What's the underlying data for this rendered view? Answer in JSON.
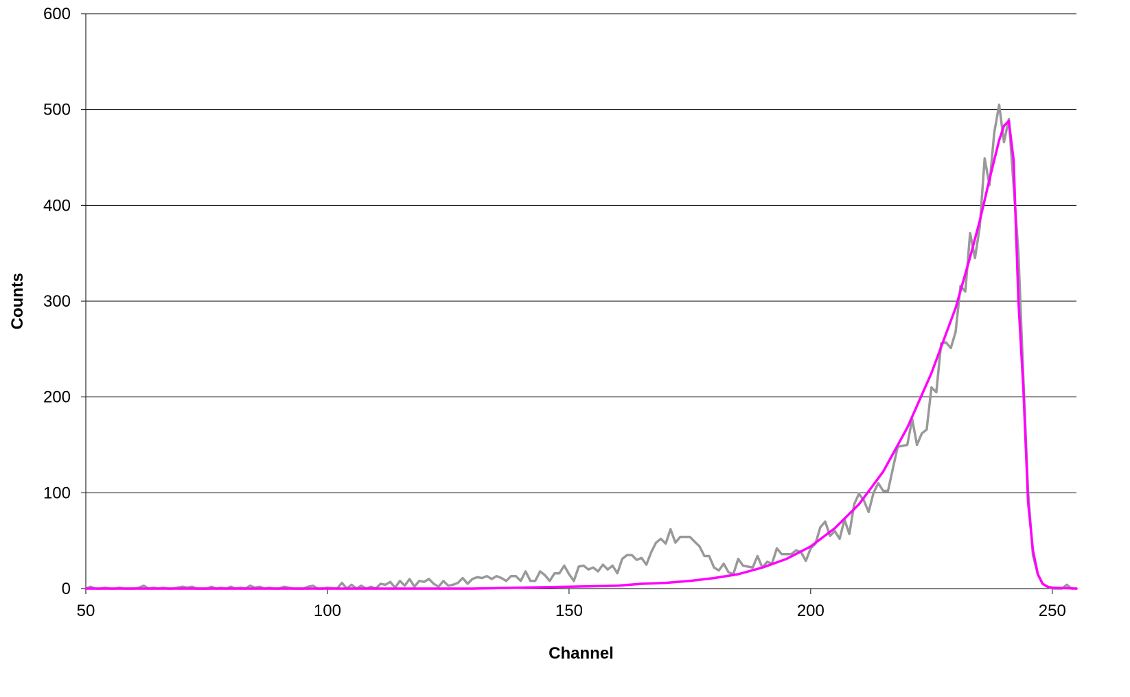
{
  "chart_data": {
    "type": "line",
    "title": "",
    "xlabel": "Channel",
    "ylabel": "Counts",
    "xlim": [
      50,
      255
    ],
    "ylim": [
      0,
      600
    ],
    "x_ticks": [
      50,
      100,
      150,
      200,
      250
    ],
    "y_ticks": [
      0,
      100,
      200,
      300,
      400,
      500,
      600
    ],
    "grid": "horizontal",
    "legend": "none",
    "series": [
      {
        "color": "#999999",
        "points": [
          [
            50,
            0
          ],
          [
            51,
            2
          ],
          [
            52,
            0
          ],
          [
            53,
            0
          ],
          [
            54,
            1
          ],
          [
            55,
            0
          ],
          [
            56,
            0
          ],
          [
            57,
            1
          ],
          [
            58,
            0
          ],
          [
            59,
            0
          ],
          [
            60,
            0
          ],
          [
            61,
            1
          ],
          [
            62,
            3
          ],
          [
            63,
            0
          ],
          [
            64,
            1
          ],
          [
            65,
            0
          ],
          [
            66,
            1
          ],
          [
            67,
            0
          ],
          [
            68,
            0
          ],
          [
            69,
            1
          ],
          [
            70,
            2
          ],
          [
            71,
            1
          ],
          [
            72,
            2
          ],
          [
            73,
            0
          ],
          [
            74,
            0
          ],
          [
            75,
            0
          ],
          [
            76,
            2
          ],
          [
            77,
            0
          ],
          [
            78,
            1
          ],
          [
            79,
            0
          ],
          [
            80,
            2
          ],
          [
            81,
            0
          ],
          [
            82,
            1
          ],
          [
            83,
            0
          ],
          [
            84,
            3
          ],
          [
            85,
            1
          ],
          [
            86,
            2
          ],
          [
            87,
            0
          ],
          [
            88,
            1
          ],
          [
            89,
            0
          ],
          [
            90,
            0
          ],
          [
            91,
            2
          ],
          [
            92,
            1
          ],
          [
            93,
            0
          ],
          [
            94,
            0
          ],
          [
            95,
            0
          ],
          [
            96,
            2
          ],
          [
            97,
            3
          ],
          [
            98,
            0
          ],
          [
            99,
            0
          ],
          [
            100,
            1
          ],
          [
            102,
            0
          ],
          [
            103,
            6
          ],
          [
            104,
            0
          ],
          [
            105,
            4
          ],
          [
            106,
            0
          ],
          [
            107,
            3
          ],
          [
            108,
            0
          ],
          [
            109,
            2
          ],
          [
            110,
            0
          ],
          [
            111,
            5
          ],
          [
            112,
            4
          ],
          [
            113,
            7
          ],
          [
            114,
            1
          ],
          [
            115,
            8
          ],
          [
            116,
            3
          ],
          [
            117,
            10
          ],
          [
            118,
            2
          ],
          [
            119,
            8
          ],
          [
            120,
            7
          ],
          [
            121,
            10
          ],
          [
            122,
            5
          ],
          [
            123,
            2
          ],
          [
            124,
            8
          ],
          [
            125,
            3
          ],
          [
            126,
            4
          ],
          [
            127,
            6
          ],
          [
            128,
            11
          ],
          [
            129,
            5
          ],
          [
            130,
            10
          ],
          [
            131,
            12
          ],
          [
            132,
            11
          ],
          [
            133,
            13
          ],
          [
            134,
            10
          ],
          [
            135,
            13
          ],
          [
            136,
            11
          ],
          [
            137,
            8
          ],
          [
            138,
            13
          ],
          [
            139,
            13
          ],
          [
            140,
            8
          ],
          [
            141,
            18
          ],
          [
            142,
            8
          ],
          [
            143,
            8
          ],
          [
            144,
            18
          ],
          [
            145,
            14
          ],
          [
            146,
            8
          ],
          [
            147,
            16
          ],
          [
            148,
            16
          ],
          [
            149,
            24
          ],
          [
            150,
            15
          ],
          [
            151,
            8
          ],
          [
            152,
            23
          ],
          [
            153,
            24
          ],
          [
            154,
            20
          ],
          [
            155,
            22
          ],
          [
            156,
            18
          ],
          [
            157,
            25
          ],
          [
            158,
            20
          ],
          [
            159,
            24
          ],
          [
            160,
            16
          ],
          [
            161,
            31
          ],
          [
            162,
            35
          ],
          [
            163,
            35
          ],
          [
            164,
            30
          ],
          [
            165,
            32
          ],
          [
            166,
            25
          ],
          [
            167,
            38
          ],
          [
            168,
            48
          ],
          [
            169,
            52
          ],
          [
            170,
            47
          ],
          [
            171,
            62
          ],
          [
            172,
            48
          ],
          [
            173,
            54
          ],
          [
            174,
            54
          ],
          [
            175,
            54
          ],
          [
            176,
            49
          ],
          [
            177,
            44
          ],
          [
            178,
            34
          ],
          [
            179,
            34
          ],
          [
            180,
            22
          ],
          [
            181,
            19
          ],
          [
            182,
            26
          ],
          [
            183,
            17
          ],
          [
            184,
            15
          ],
          [
            185,
            31
          ],
          [
            186,
            24
          ],
          [
            187,
            23
          ],
          [
            188,
            22
          ],
          [
            189,
            34
          ],
          [
            190,
            22
          ],
          [
            191,
            28
          ],
          [
            192,
            26
          ],
          [
            193,
            42
          ],
          [
            194,
            36
          ],
          [
            195,
            36
          ],
          [
            196,
            36
          ],
          [
            197,
            40
          ],
          [
            198,
            38
          ],
          [
            199,
            29
          ],
          [
            200,
            42
          ],
          [
            201,
            47
          ],
          [
            202,
            64
          ],
          [
            203,
            70
          ],
          [
            204,
            55
          ],
          [
            205,
            60
          ],
          [
            206,
            52
          ],
          [
            207,
            72
          ],
          [
            208,
            57
          ],
          [
            209,
            88
          ],
          [
            210,
            99
          ],
          [
            211,
            92
          ],
          [
            212,
            80
          ],
          [
            213,
            100
          ],
          [
            214,
            110
          ],
          [
            215,
            102
          ],
          [
            216,
            102
          ],
          [
            217,
            125
          ],
          [
            218,
            148
          ],
          [
            219,
            149
          ],
          [
            220,
            150
          ],
          [
            221,
            177
          ],
          [
            222,
            150
          ],
          [
            223,
            162
          ],
          [
            224,
            166
          ],
          [
            225,
            210
          ],
          [
            226,
            205
          ],
          [
            227,
            256
          ],
          [
            228,
            257
          ],
          [
            229,
            251
          ],
          [
            230,
            268
          ],
          [
            231,
            316
          ],
          [
            232,
            310
          ],
          [
            233,
            371
          ],
          [
            234,
            345
          ],
          [
            235,
            378
          ],
          [
            236,
            449
          ],
          [
            237,
            421
          ],
          [
            238,
            476
          ],
          [
            239,
            505
          ],
          [
            240,
            466
          ],
          [
            241,
            490
          ],
          [
            242,
            420
          ],
          [
            243,
            350
          ],
          [
            244,
            220
          ],
          [
            245,
            100
          ],
          [
            246,
            35
          ],
          [
            247,
            15
          ],
          [
            248,
            5
          ],
          [
            249,
            2
          ],
          [
            250,
            0
          ],
          [
            251,
            0
          ],
          [
            252,
            0
          ],
          [
            253,
            4
          ],
          [
            254,
            0
          ],
          [
            255,
            0
          ]
        ]
      },
      {
        "color": "#ff00ff",
        "points": [
          [
            50,
            0
          ],
          [
            130,
            0
          ],
          [
            140,
            1
          ],
          [
            150,
            2
          ],
          [
            160,
            3
          ],
          [
            165,
            5
          ],
          [
            170,
            6
          ],
          [
            175,
            8
          ],
          [
            180,
            11
          ],
          [
            185,
            15
          ],
          [
            190,
            22
          ],
          [
            195,
            31
          ],
          [
            200,
            44
          ],
          [
            205,
            63
          ],
          [
            210,
            88
          ],
          [
            215,
            122
          ],
          [
            220,
            168
          ],
          [
            225,
            225
          ],
          [
            230,
            293
          ],
          [
            233,
            346
          ],
          [
            235,
            384
          ],
          [
            237,
            427
          ],
          [
            239,
            468
          ],
          [
            240,
            483
          ],
          [
            241,
            488
          ],
          [
            242,
            447
          ],
          [
            243,
            300
          ],
          [
            244,
            210
          ],
          [
            245,
            90
          ],
          [
            246,
            40
          ],
          [
            247,
            15
          ],
          [
            248,
            5
          ],
          [
            249,
            2
          ],
          [
            250,
            1
          ],
          [
            255,
            0
          ]
        ]
      }
    ]
  }
}
